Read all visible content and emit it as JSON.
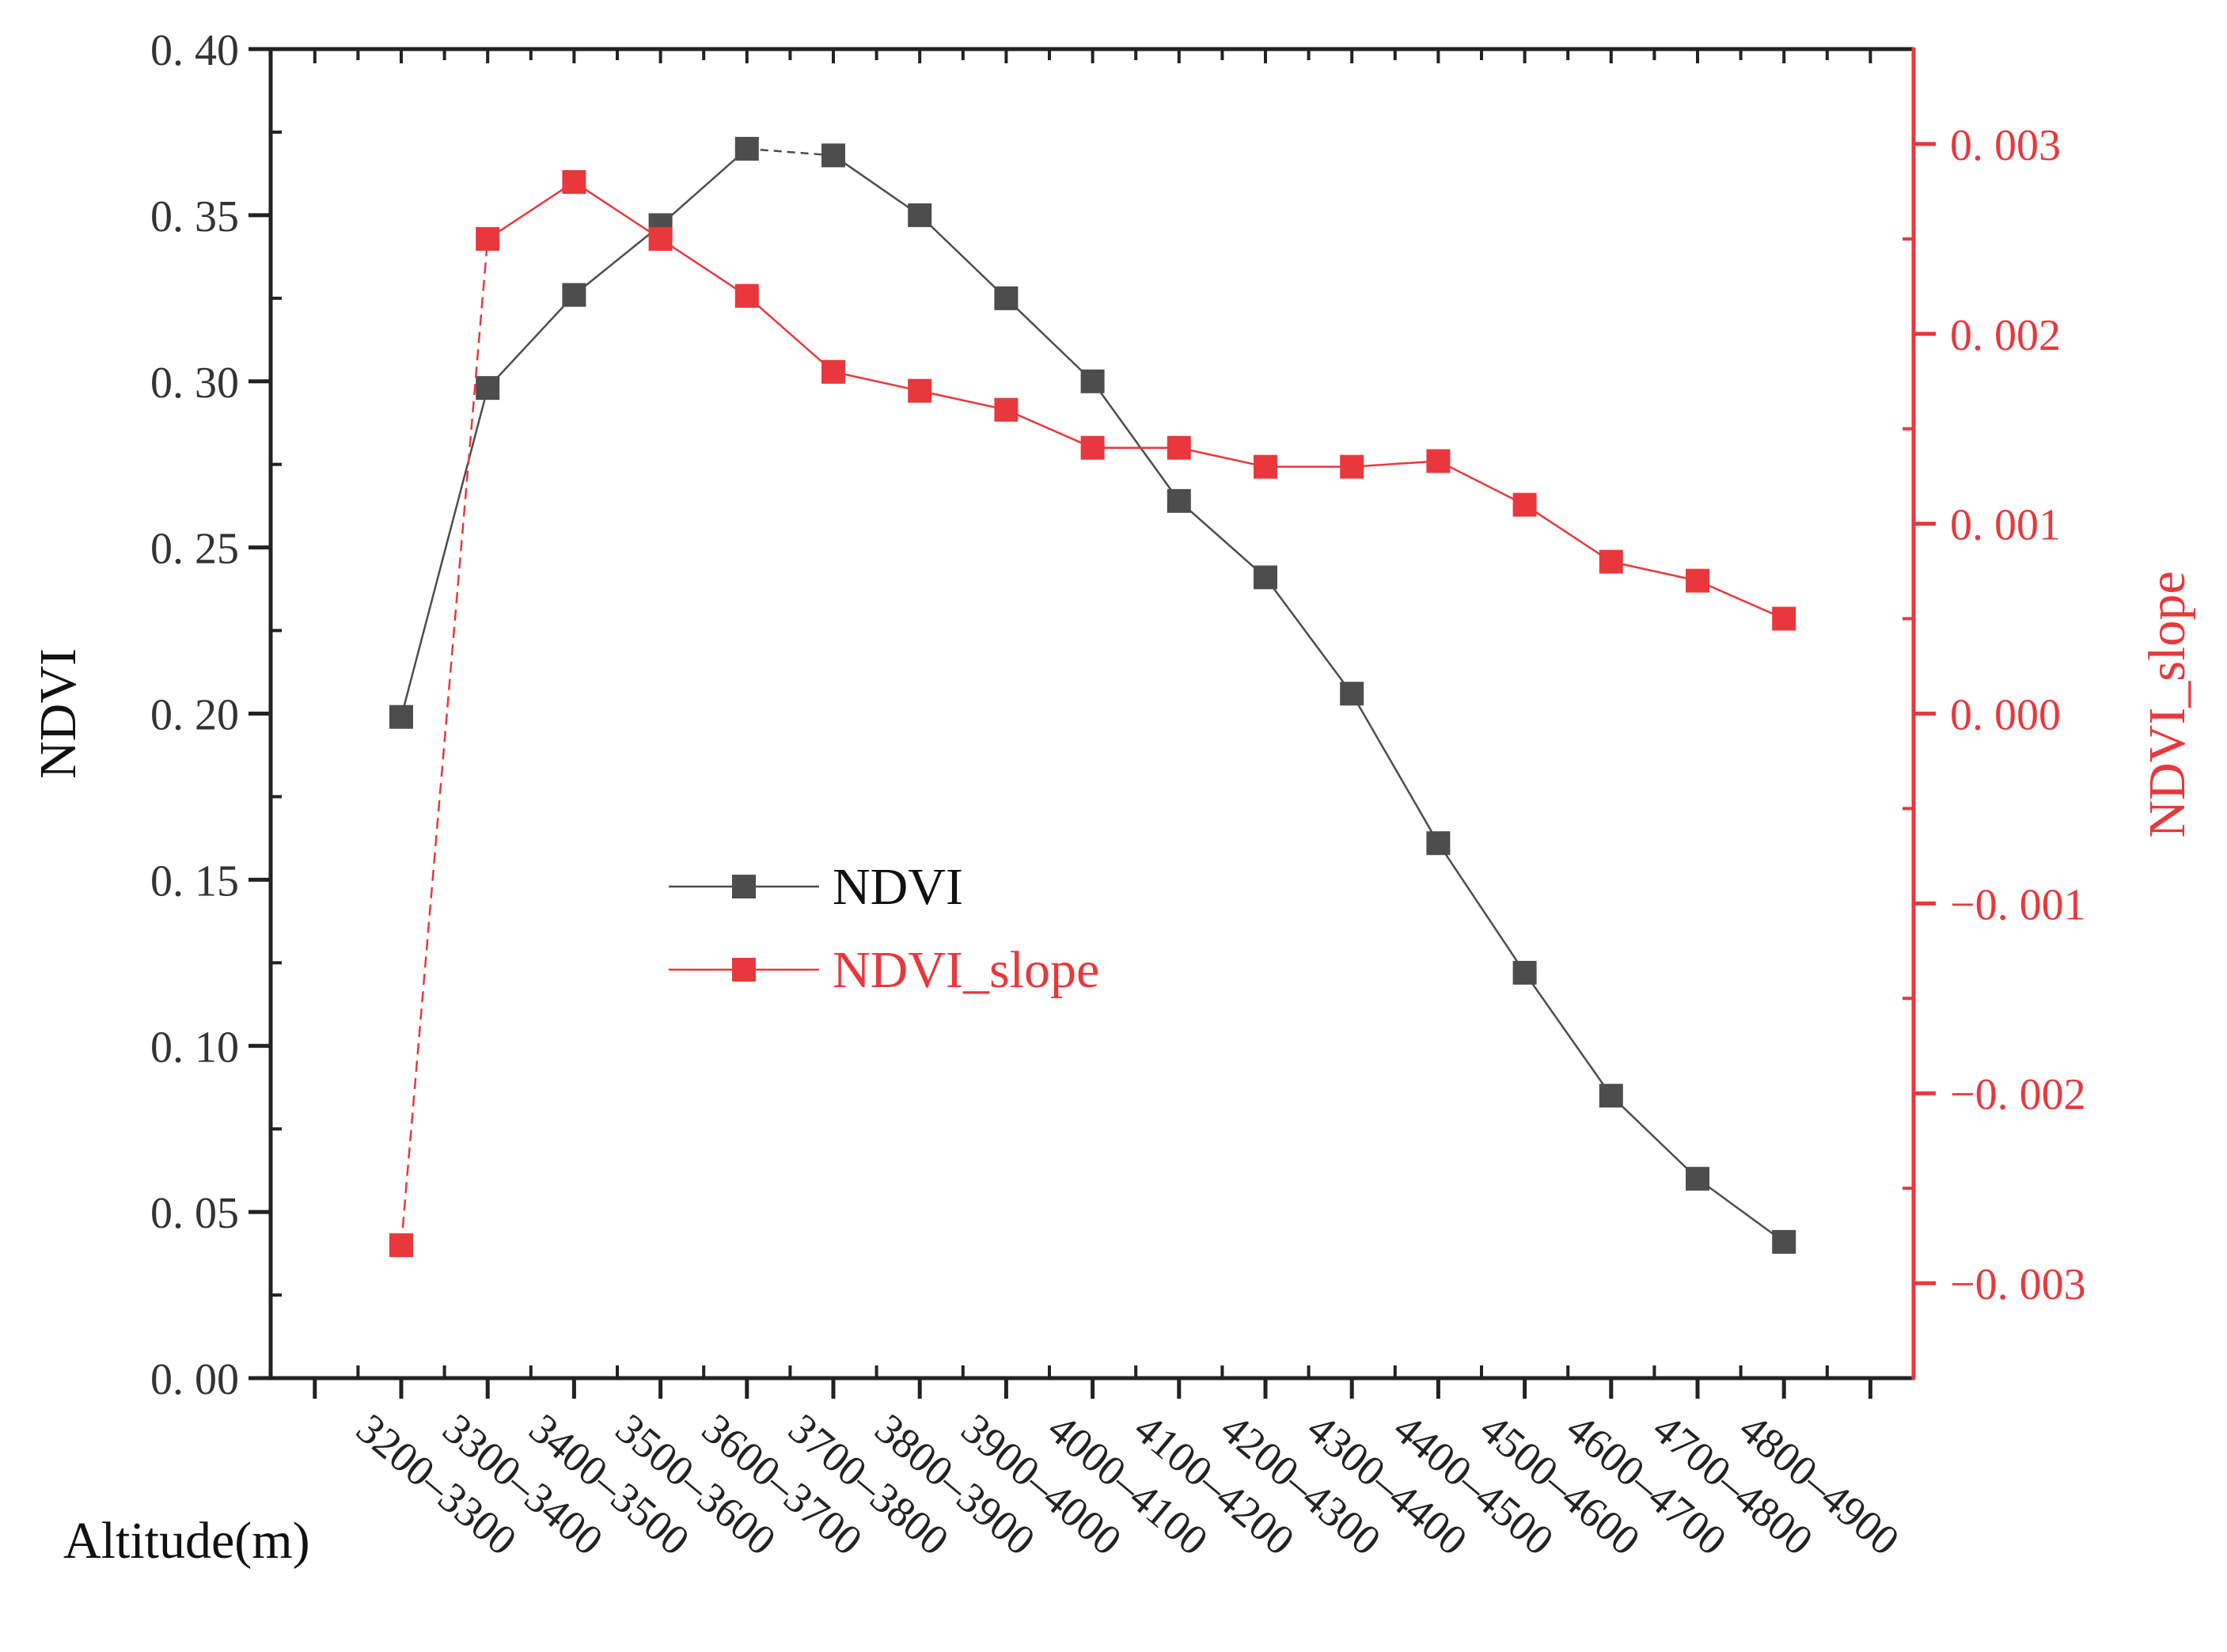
{
  "chart_data": {
    "type": "line",
    "title": "",
    "xlabel": "Altitude(m)",
    "ylabel": "NDVI",
    "y2label": "NDVI_slope",
    "categories": [
      "3200–3300",
      "3300–3400",
      "3400–3500",
      "3500–3600",
      "3600–3700",
      "3700–3800",
      "3800–3900",
      "3900–4000",
      "4000–4100",
      "4100–4200",
      "4200–4300",
      "4300–4400",
      "4400–4500",
      "4500–4600",
      "4600–4700",
      "4700–4800",
      "4800–4900"
    ],
    "ylim": [
      0,
      0.4
    ],
    "y_ticks": [
      "0. 00",
      "0. 05",
      "0. 10",
      "0. 15",
      "0. 20",
      "0. 25",
      "0. 30",
      "0. 35",
      "0. 40"
    ],
    "y2lim": [
      -0.0035,
      0.0035
    ],
    "y2_ticks": [
      "−0. 003",
      "−0. 002",
      "−0. 001",
      "0. 000",
      "0. 001",
      "0. 002",
      "0. 003"
    ],
    "y2_tick_values": [
      -0.003,
      -0.002,
      -0.001,
      0,
      0.001,
      0.002,
      0.003
    ],
    "series": [
      {
        "name": "NDVI",
        "axis": "left",
        "color": "#4d4d4d",
        "values": [
          0.199,
          0.298,
          0.326,
          0.347,
          0.37,
          0.368,
          0.35,
          0.325,
          0.3,
          0.264,
          0.241,
          0.206,
          0.161,
          0.122,
          0.085,
          0.06,
          0.041
        ]
      },
      {
        "name": "NDVI_slope",
        "axis": "right",
        "color": "#e8383d",
        "values": [
          -0.0028,
          0.0025,
          0.0028,
          0.0025,
          0.0022,
          0.0018,
          0.0017,
          0.0016,
          0.0014,
          0.0014,
          0.0013,
          0.0013,
          0.00133,
          0.0011,
          0.0008,
          0.0007,
          0.0005
        ]
      }
    ],
    "legend": "center-left",
    "grid": false
  }
}
